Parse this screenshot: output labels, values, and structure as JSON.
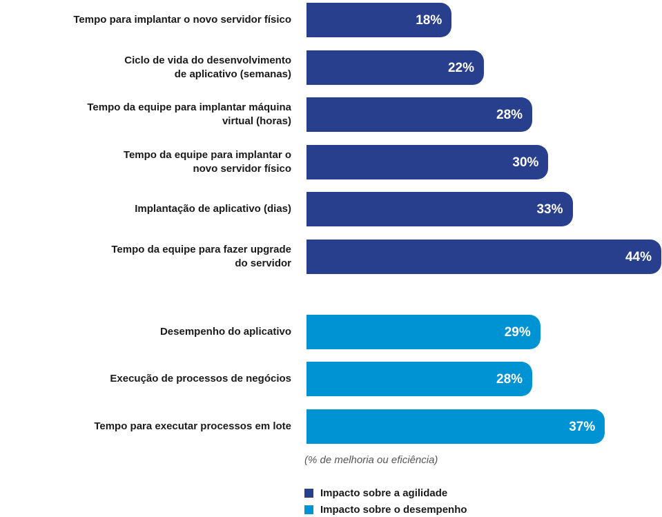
{
  "chart_data": {
    "type": "bar",
    "orientation": "horizontal",
    "categories": [
      "Tempo para implantar o novo servidor físico",
      "Ciclo de vida do desenvolvimento\nde aplicativo (semanas)",
      "Tempo da equipe para implantar máquina\nvirtual (horas)",
      "Tempo da equipe para implantar o\nnovo servidor físico",
      "Implantação de aplicativo (dias)",
      "Tempo da equipe para fazer upgrade\ndo servidor",
      "Desempenho do aplicativo",
      "Execução de processos de negócios",
      "Tempo para executar processos em lote"
    ],
    "series": [
      {
        "name": "Impacto sobre a agilidade",
        "color": "#283f8e",
        "values": [
          18,
          22,
          28,
          30,
          33,
          44,
          null,
          null,
          null
        ],
        "value_labels": [
          "18%",
          "22%",
          "28%",
          "30%",
          "33%",
          "44%",
          null,
          null,
          null
        ]
      },
      {
        "name": "Impacto sobre o desempenho",
        "color": "#0093d3",
        "values": [
          null,
          null,
          null,
          null,
          null,
          null,
          29,
          28,
          37
        ],
        "value_labels": [
          null,
          null,
          null,
          null,
          null,
          null,
          "29%",
          "28%",
          "37%"
        ]
      }
    ],
    "xlim": [
      0,
      44
    ],
    "note": "(% de melhoria ou eficiência)"
  }
}
